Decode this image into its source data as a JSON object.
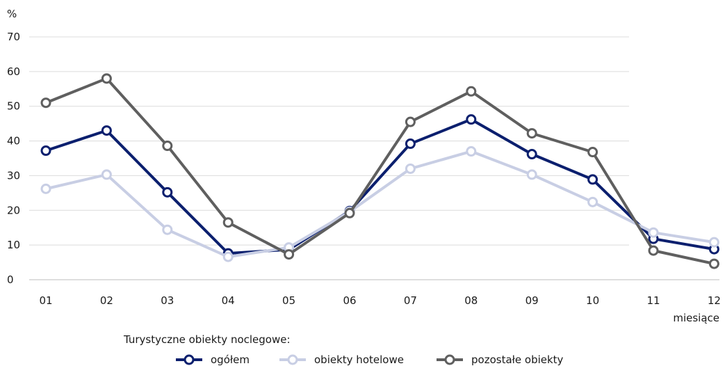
{
  "chart_data": {
    "type": "line",
    "ylabel": "%",
    "xlabel": "miesiące",
    "ylim": [
      0,
      70
    ],
    "yticks": [
      "0",
      "10",
      "20",
      "30",
      "40",
      "50",
      "60",
      "70"
    ],
    "categories": [
      "01",
      "02",
      "03",
      "04",
      "05",
      "06",
      "07",
      "08",
      "09",
      "10",
      "11",
      "12"
    ],
    "grid": true,
    "legend_position": "bottom",
    "legend_title": "Turystyczne obiekty noclegowe:",
    "series": [
      {
        "name": "ogółem",
        "color": "#0b1f6e",
        "values": [
          37.2,
          43.0,
          25.2,
          7.6,
          8.7,
          19.8,
          39.2,
          46.2,
          36.2,
          28.9,
          11.8,
          8.8
        ]
      },
      {
        "name": "obiekty hotelowe",
        "color": "#c8cee4",
        "values": [
          26.2,
          30.3,
          14.4,
          6.6,
          9.3,
          19.6,
          32.0,
          37.0,
          30.3,
          22.4,
          13.6,
          10.8
        ]
      },
      {
        "name": "pozostałe obiekty",
        "color": "#5f5f5f",
        "values": [
          51.0,
          58.0,
          38.6,
          16.5,
          7.3,
          19.2,
          45.5,
          54.3,
          42.2,
          36.8,
          8.4,
          4.6
        ]
      }
    ]
  }
}
